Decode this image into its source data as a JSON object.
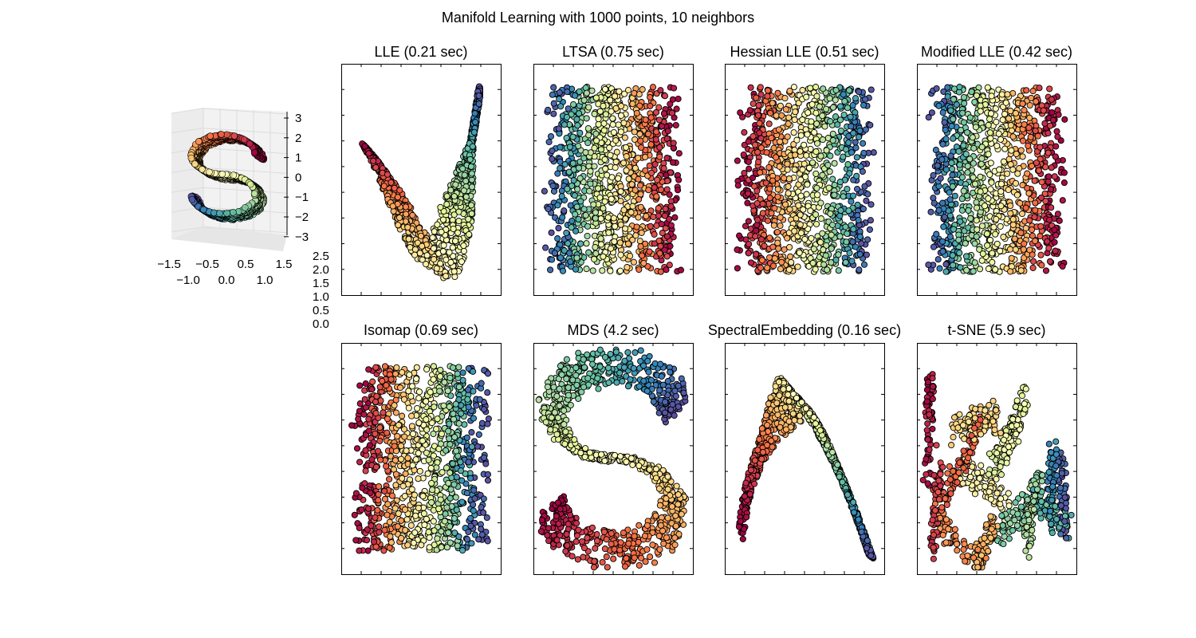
{
  "suptitle": "Manifold Learning with 1000 points, 10 neighbors",
  "colors": {
    "colormap": "Spectral",
    "stops": [
      "#9e0142",
      "#d53e4f",
      "#f46d43",
      "#fdae61",
      "#fee08b",
      "#ffffbf",
      "#e6f598",
      "#abdda4",
      "#66c2a5",
      "#3288bd",
      "#5e4fa2"
    ],
    "edge": "#000000",
    "pane": "#f2f2f2"
  },
  "chart_data": [
    {
      "type": "scatter3d",
      "title": "",
      "dataset": "S-curve",
      "n_points": 1000,
      "zlim": [
        -3,
        3
      ],
      "z_ticks": [
        "3",
        "2",
        "1",
        "0",
        "−1",
        "−2",
        "−3"
      ],
      "x_ticks": [
        "−1.5",
        "−1.0",
        "−0.5",
        "0.0",
        "0.5",
        "1.0",
        "1.5"
      ],
      "y_ticks": [
        "2.5",
        "2.0",
        "1.5",
        "1.0",
        "0.5",
        "0.0"
      ]
    },
    {
      "type": "scatter",
      "title": "LLE (0.21 sec)",
      "shape": "v-curve",
      "n_points": 1000
    },
    {
      "type": "scatter",
      "title": "LTSA (0.75 sec)",
      "shape": "rectangle-reversed",
      "n_points": 1000
    },
    {
      "type": "scatter",
      "title": "Hessian LLE (0.51 sec)",
      "shape": "rectangle",
      "n_points": 1000
    },
    {
      "type": "scatter",
      "title": "Modified LLE (0.42 sec)",
      "shape": "rectangle-reversed",
      "n_points": 1000
    },
    {
      "type": "scatter",
      "title": "Isomap (0.69 sec)",
      "shape": "rectangle",
      "n_points": 1000
    },
    {
      "type": "scatter",
      "title": "MDS (4.2 sec)",
      "shape": "s-curve",
      "n_points": 1000
    },
    {
      "type": "scatter",
      "title": "SpectralEmbedding (0.16 sec)",
      "shape": "inverted-v",
      "n_points": 1000
    },
    {
      "type": "scatter",
      "title": "t-SNE (5.9 sec)",
      "shape": "clusters",
      "n_points": 1000
    }
  ]
}
